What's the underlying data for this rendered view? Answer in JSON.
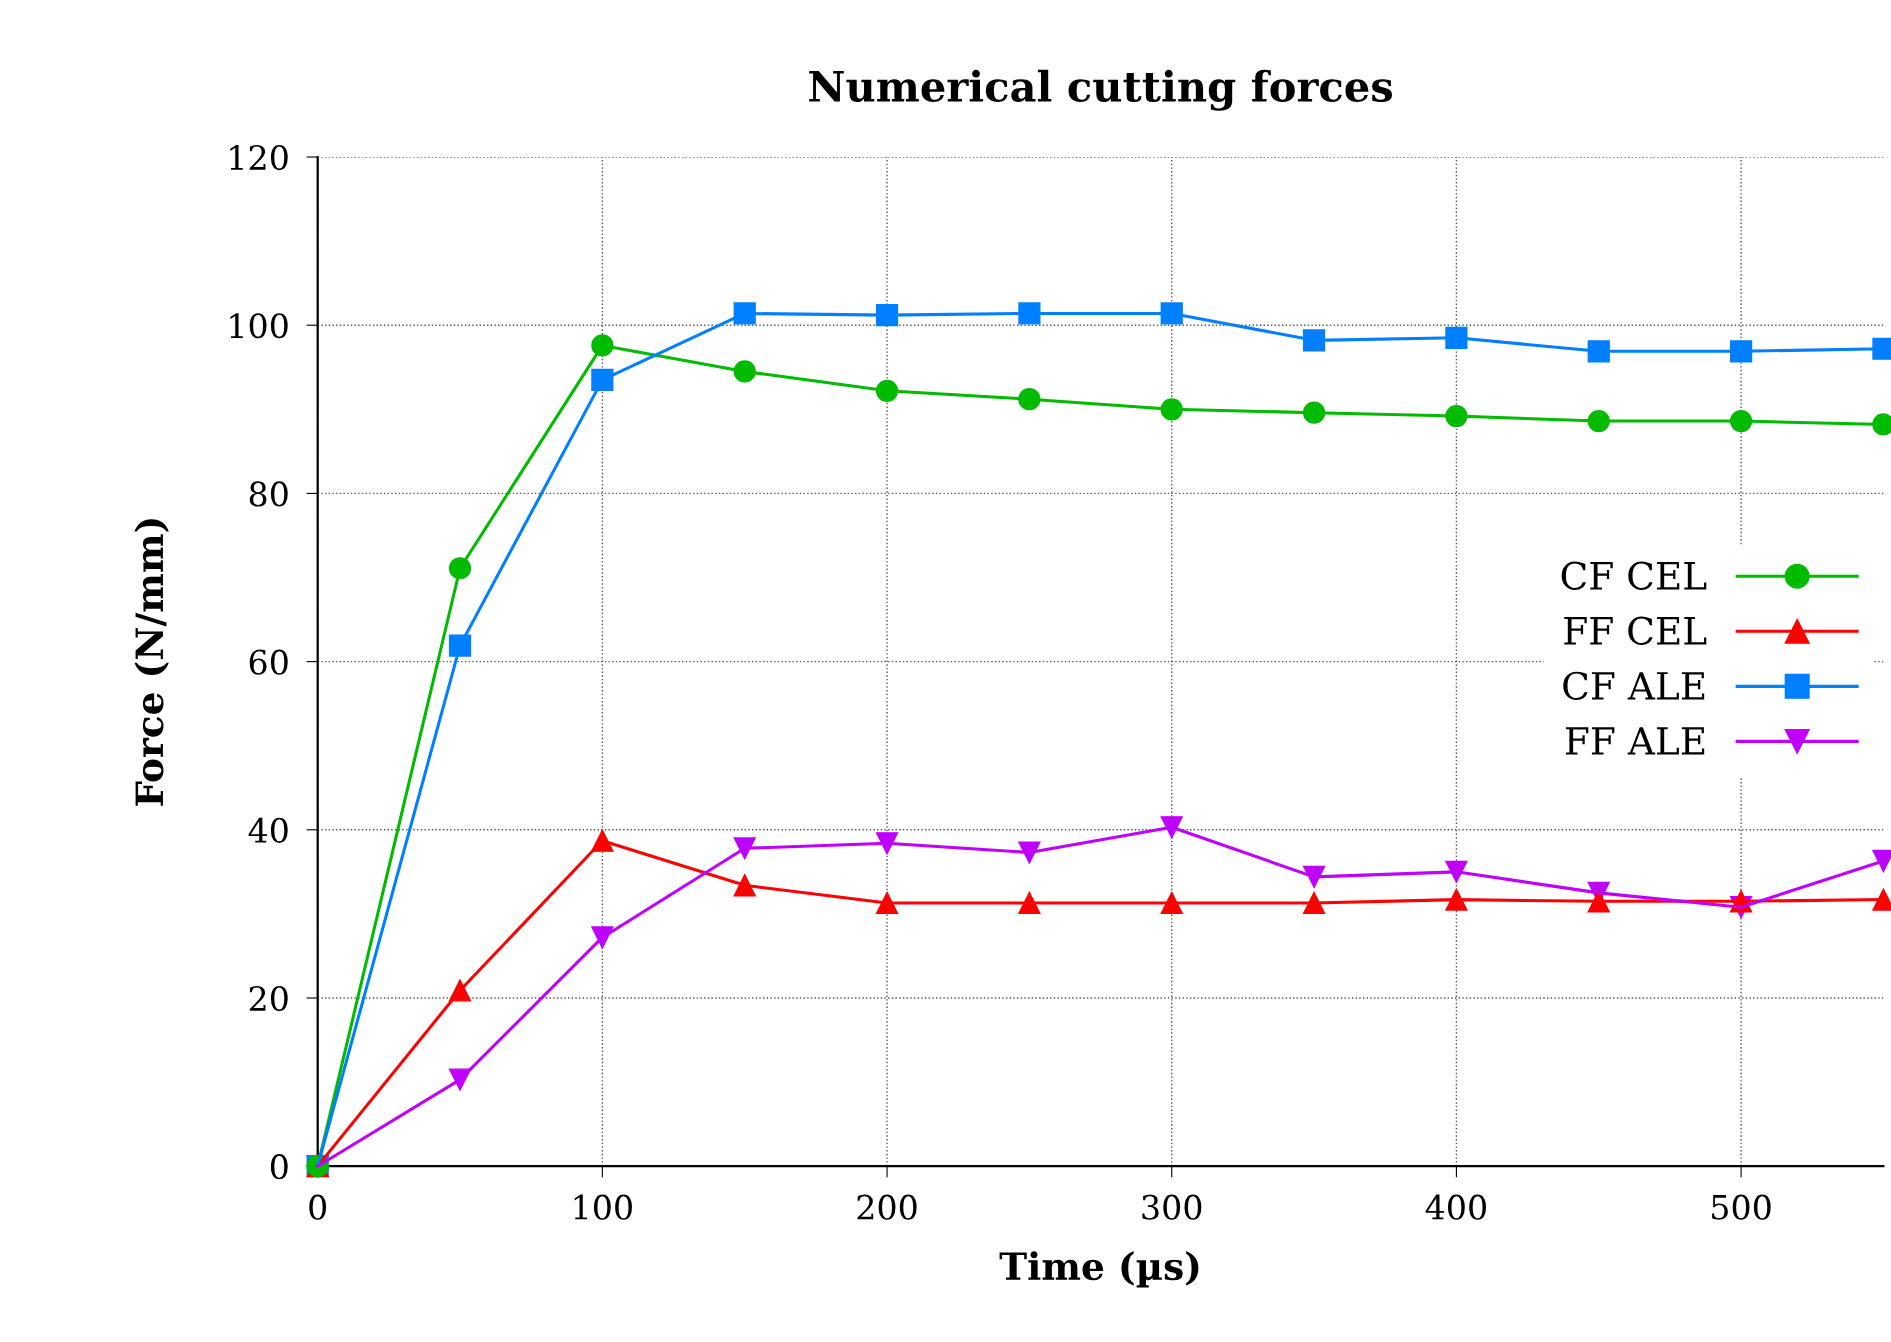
{
  "chart_data": {
    "type": "line",
    "title": "Numerical cutting forces",
    "xlabel": "Time (µs)",
    "ylabel": "Force (N/mm)",
    "x": [
      0,
      50,
      100,
      150,
      200,
      250,
      300,
      350,
      400,
      450,
      500,
      550
    ],
    "series": [
      {
        "name": "CF CEL",
        "color": "#00bb00",
        "marker": "circle",
        "values": [
          0,
          71.1,
          97.6,
          94.5,
          92.2,
          91.2,
          90.0,
          89.6,
          89.2,
          88.6,
          88.6,
          88.2
        ]
      },
      {
        "name": "FF CEL",
        "color": "#ff0000",
        "marker": "triangle",
        "values": [
          0,
          20.9,
          38.7,
          33.4,
          31.3,
          31.3,
          31.3,
          31.3,
          31.7,
          31.5,
          31.5,
          31.7
        ]
      },
      {
        "name": "CF ALE",
        "color": "#0080ff",
        "marker": "square",
        "values": [
          0,
          61.9,
          93.5,
          101.4,
          101.2,
          101.4,
          101.4,
          98.2,
          98.5,
          96.9,
          96.9,
          97.2
        ]
      },
      {
        "name": "FF ALE",
        "color": "#c000ff",
        "marker": "triangle_down",
        "values": [
          0,
          10.3,
          27.2,
          37.8,
          38.4,
          37.3,
          40.3,
          34.4,
          35.0,
          32.5,
          30.8,
          36.3
        ]
      }
    ],
    "xlim": [
      0,
      550
    ],
    "ylim": [
      0,
      120
    ],
    "xticks": [
      0,
      100,
      200,
      300,
      400,
      500
    ],
    "yticks": [
      0,
      20,
      40,
      60,
      80,
      100,
      120
    ],
    "grid": true,
    "legend": "center right",
    "line_style": "solid"
  }
}
